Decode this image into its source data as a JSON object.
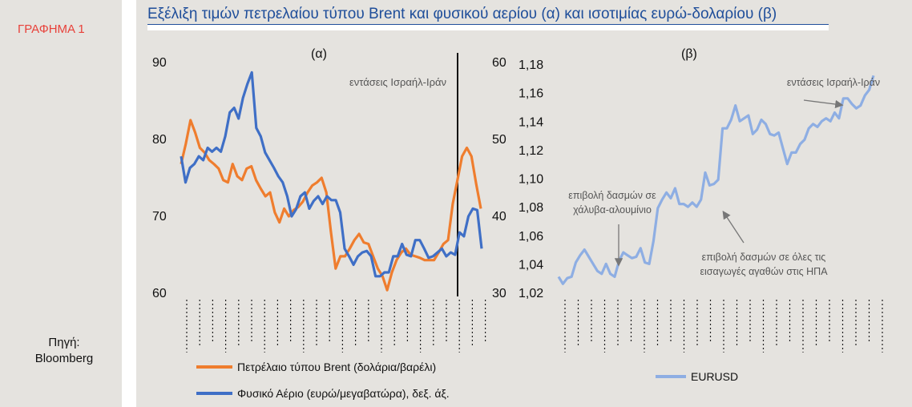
{
  "figure_label": "ΓΡΑΦΗΜΑ 1",
  "source": {
    "label": "Πηγή:",
    "name": "Bloomberg"
  },
  "title": "Εξέλιξη τιμών πετρελαίου τύπου Brent και φυσικού αερίου (α) και ισοτιμίας ευρώ-δολαρίου (β)",
  "colors": {
    "brent": "#ef7d2e",
    "gas": "#3f6fc6",
    "eurusd": "#8eaee3",
    "title": "#1f4e9a",
    "figure_label": "#e8413a"
  },
  "chart_data": [
    {
      "type": "line",
      "panel_label": "(α)",
      "left_axis": {
        "ylim": [
          60,
          90
        ],
        "ticks": [
          "60",
          "70",
          "80",
          "90"
        ]
      },
      "right_axis": {
        "ylim": [
          30,
          60
        ],
        "ticks": [
          "30",
          "40",
          "50",
          "60"
        ]
      },
      "annotation": "εντάσεις Ισραήλ-Ιράν",
      "event_line_fraction": 0.92,
      "x_tick_count": 24,
      "series": [
        {
          "name": "Πετρέλαιο τύπου Brent (δολάρια/βαρέλι)",
          "axis": "left",
          "color": "#ef7d2e",
          "values": [
            76.7,
            79.3,
            82.4,
            80.8,
            78.8,
            78.2,
            77.2,
            76.7,
            76.1,
            74.6,
            74.3,
            76.7,
            75.1,
            74.6,
            76.1,
            76.4,
            74.6,
            73.5,
            72.5,
            73.0,
            70.4,
            69.1,
            70.9,
            69.9,
            70.7,
            71.1,
            71.8,
            73.0,
            73.9,
            74.3,
            74.9,
            73.0,
            67.8,
            63.1,
            64.7,
            64.7,
            65.7,
            66.8,
            67.6,
            66.5,
            66.3,
            64.7,
            63.1,
            62.1,
            60.3,
            62.6,
            64.2,
            65.2,
            65.7,
            64.9,
            64.7,
            64.5,
            64.2,
            64.2,
            64.2,
            65.2,
            66.3,
            66.8,
            71.5,
            74.6,
            77.7,
            78.8,
            77.7,
            74.1,
            70.9
          ]
        },
        {
          "name": "Φυσικό Αέριο (ευρώ/μεγαβατώρα), δεξ. άξ.",
          "axis": "right",
          "color": "#3f6fc6",
          "values": [
            47.7,
            44.3,
            46.2,
            46.7,
            47.7,
            47.2,
            48.8,
            48.3,
            48.8,
            48.3,
            50.3,
            53.4,
            54.0,
            52.6,
            55.3,
            57.1,
            58.6,
            51.4,
            50.3,
            48.2,
            47.2,
            46.2,
            45.1,
            44.3,
            42.5,
            39.9,
            40.8,
            42.5,
            43.0,
            40.9,
            41.9,
            42.5,
            41.5,
            42.5,
            42.0,
            42.0,
            40.4,
            35.7,
            34.7,
            33.6,
            34.7,
            35.2,
            35.4,
            34.7,
            32.1,
            32.1,
            32.6,
            32.6,
            34.7,
            34.7,
            36.3,
            34.9,
            34.7,
            36.8,
            36.8,
            35.7,
            34.5,
            34.7,
            35.2,
            35.7,
            34.7,
            35.2,
            34.9,
            37.8,
            37.3,
            39.9,
            40.9,
            40.7,
            35.7
          ]
        }
      ]
    },
    {
      "type": "line",
      "panel_label": "(β)",
      "axis": {
        "ylim": [
          1.02,
          1.18
        ],
        "ticks": [
          "1,02",
          "1,04",
          "1,06",
          "1,08",
          "1,10",
          "1,12",
          "1,14",
          "1,16",
          "1,18"
        ]
      },
      "x_tick_count": 25,
      "annotations": [
        {
          "text": "εντάσεις Ισραήλ-Ιράν"
        },
        {
          "lines": [
            "επιβολή δασμών σε",
            "χάλυβα-αλουμίνιο"
          ]
        },
        {
          "lines": [
            "επιβολή δασμών σε όλες τις",
            "εισαγωγές αγαθών στις ΗΠΑ"
          ]
        }
      ],
      "series": [
        {
          "name": "EURUSD",
          "color": "#8eaee3",
          "values": [
            1.031,
            1.026,
            1.03,
            1.031,
            1.041,
            1.046,
            1.05,
            1.045,
            1.04,
            1.035,
            1.033,
            1.04,
            1.033,
            1.031,
            1.042,
            1.048,
            1.046,
            1.044,
            1.045,
            1.051,
            1.041,
            1.04,
            1.056,
            1.079,
            1.085,
            1.09,
            1.086,
            1.093,
            1.082,
            1.082,
            1.08,
            1.083,
            1.08,
            1.085,
            1.104,
            1.095,
            1.096,
            1.099,
            1.135,
            1.135,
            1.141,
            1.151,
            1.14,
            1.142,
            1.144,
            1.131,
            1.134,
            1.141,
            1.138,
            1.131,
            1.13,
            1.132,
            1.121,
            1.11,
            1.118,
            1.118,
            1.124,
            1.127,
            1.135,
            1.138,
            1.136,
            1.14,
            1.142,
            1.14,
            1.146,
            1.142,
            1.156,
            1.156,
            1.152,
            1.149,
            1.151,
            1.158,
            1.162,
            1.172
          ]
        }
      ]
    }
  ]
}
